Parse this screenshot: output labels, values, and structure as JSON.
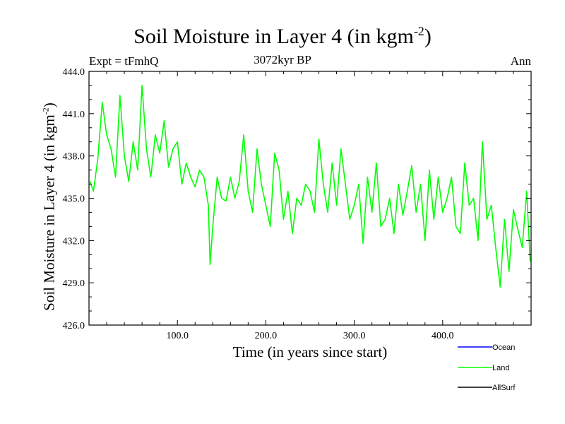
{
  "page": {
    "title_prefix": "Soil Moisture in Layer 4 (in kgm",
    "title_sup": "-2",
    "title_suffix": ")",
    "expt_label": "Expt = tFmhQ",
    "period_label": "3072kyr BP",
    "season_label": "Ann"
  },
  "chart_data": {
    "type": "line",
    "title": "Soil Moisture in Layer 4 (in kgm-2)",
    "xlabel": "Time (in years since start)",
    "ylabel": "Soil Moisture in Layer 4 (in kgm-2)",
    "ylabel_prefix": "Soil Moisture in Layer 4 (in kgm",
    "ylabel_sup": "-2",
    "ylabel_suffix": ")",
    "xlim": [
      0,
      500
    ],
    "ylim": [
      426.0,
      444.0
    ],
    "xticks": [
      100,
      200,
      300,
      400
    ],
    "xtick_labels": [
      "100.0",
      "200.0",
      "300.0",
      "400.0"
    ],
    "yticks": [
      426,
      429,
      432,
      435,
      438,
      441,
      444
    ],
    "ytick_labels": [
      "426.0",
      "429.0",
      "432.0",
      "435.0",
      "438.0",
      "441.0",
      "444.0"
    ],
    "legend": [
      {
        "name": "Ocean",
        "color": "#0000ff"
      },
      {
        "name": "Land",
        "color": "#00ff00"
      },
      {
        "name": "AllSurf",
        "color": "#000000"
      }
    ],
    "series": [
      {
        "name": "Land",
        "color": "#00ff00",
        "x": [
          1,
          5,
          10,
          15,
          20,
          25,
          30,
          35,
          40,
          45,
          50,
          55,
          60,
          65,
          70,
          75,
          80,
          85,
          90,
          95,
          100,
          105,
          110,
          115,
          120,
          125,
          130,
          135,
          137,
          140,
          145,
          150,
          155,
          160,
          165,
          170,
          175,
          180,
          185,
          190,
          195,
          200,
          205,
          210,
          215,
          220,
          225,
          230,
          235,
          240,
          245,
          250,
          255,
          260,
          265,
          270,
          275,
          280,
          285,
          290,
          295,
          300,
          305,
          310,
          315,
          320,
          325,
          330,
          335,
          340,
          345,
          350,
          355,
          360,
          365,
          370,
          375,
          380,
          385,
          390,
          395,
          400,
          405,
          410,
          415,
          420,
          425,
          430,
          435,
          440,
          445,
          450,
          455,
          460,
          465,
          470,
          475,
          480,
          485,
          490,
          495,
          499
        ],
        "values": [
          436.2,
          435.5,
          437.8,
          441.8,
          439.5,
          438.5,
          436.5,
          442.3,
          438.0,
          436.2,
          439.0,
          437.0,
          443.0,
          438.5,
          436.5,
          439.5,
          438.2,
          440.5,
          437.2,
          438.5,
          439.0,
          436.0,
          437.5,
          436.5,
          435.8,
          437.0,
          436.5,
          434.5,
          430.3,
          433.0,
          436.5,
          435.0,
          434.8,
          436.5,
          435.0,
          436.2,
          439.5,
          435.5,
          434.0,
          438.5,
          436.0,
          434.5,
          433.0,
          438.2,
          437.0,
          433.5,
          435.5,
          432.5,
          435.0,
          434.5,
          436.0,
          435.5,
          434.0,
          439.2,
          436.0,
          434.0,
          437.5,
          434.5,
          438.5,
          436.0,
          433.5,
          434.5,
          436.0,
          431.8,
          436.5,
          434.0,
          437.5,
          433.0,
          433.5,
          435.0,
          432.5,
          436.0,
          433.8,
          435.5,
          437.3,
          434.0,
          436.0,
          432.0,
          437.0,
          433.5,
          436.5,
          434.0,
          435.0,
          436.5,
          433.0,
          432.5,
          437.5,
          434.5,
          435.0,
          432.0,
          439.0,
          433.5,
          434.5,
          431.5,
          428.7,
          433.5,
          429.8,
          434.2,
          432.8,
          431.5,
          435.5,
          430.5
        ]
      },
      {
        "name": "Ocean",
        "color": "#0000ff",
        "x": [],
        "values": []
      },
      {
        "name": "AllSurf",
        "color": "#000000",
        "x": [],
        "values": []
      }
    ]
  }
}
